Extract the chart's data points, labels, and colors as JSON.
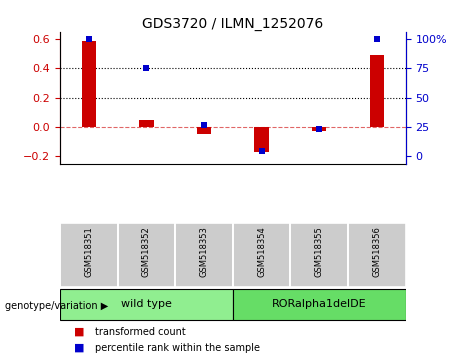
{
  "title": "GDS3720 / ILMN_1252076",
  "samples": [
    "GSM518351",
    "GSM518352",
    "GSM518353",
    "GSM518354",
    "GSM518355",
    "GSM518356"
  ],
  "red_values": [
    0.59,
    0.05,
    -0.05,
    -0.17,
    -0.03,
    0.49
  ],
  "blue_values": [
    100,
    75,
    27,
    5,
    23,
    100
  ],
  "groups": [
    {
      "label": "wild type",
      "start": 0,
      "end": 3,
      "color": "#90EE90"
    },
    {
      "label": "RORalpha1delDE",
      "start": 3,
      "end": 6,
      "color": "#66DD66"
    }
  ],
  "ylim_left": [
    -0.25,
    0.65
  ],
  "ylim_right": [
    -31.25,
    81.25
  ],
  "yticks_left": [
    -0.2,
    0.0,
    0.2,
    0.4,
    0.6
  ],
  "yticks_right": [
    0,
    25,
    50,
    75,
    100
  ],
  "hlines": [
    0.2,
    0.4
  ],
  "zero_line": 0.0,
  "red_color": "#CC0000",
  "blue_color": "#0000CC",
  "legend_items": [
    "transformed count",
    "percentile rank within the sample"
  ],
  "genotype_label": "genotype/variation",
  "left_axis_color": "#CC0000",
  "right_axis_color": "#0000CC",
  "bar_width": 0.25,
  "sample_box_color": "#cccccc",
  "group_label_fontsize": 8,
  "sample_label_fontsize": 6
}
